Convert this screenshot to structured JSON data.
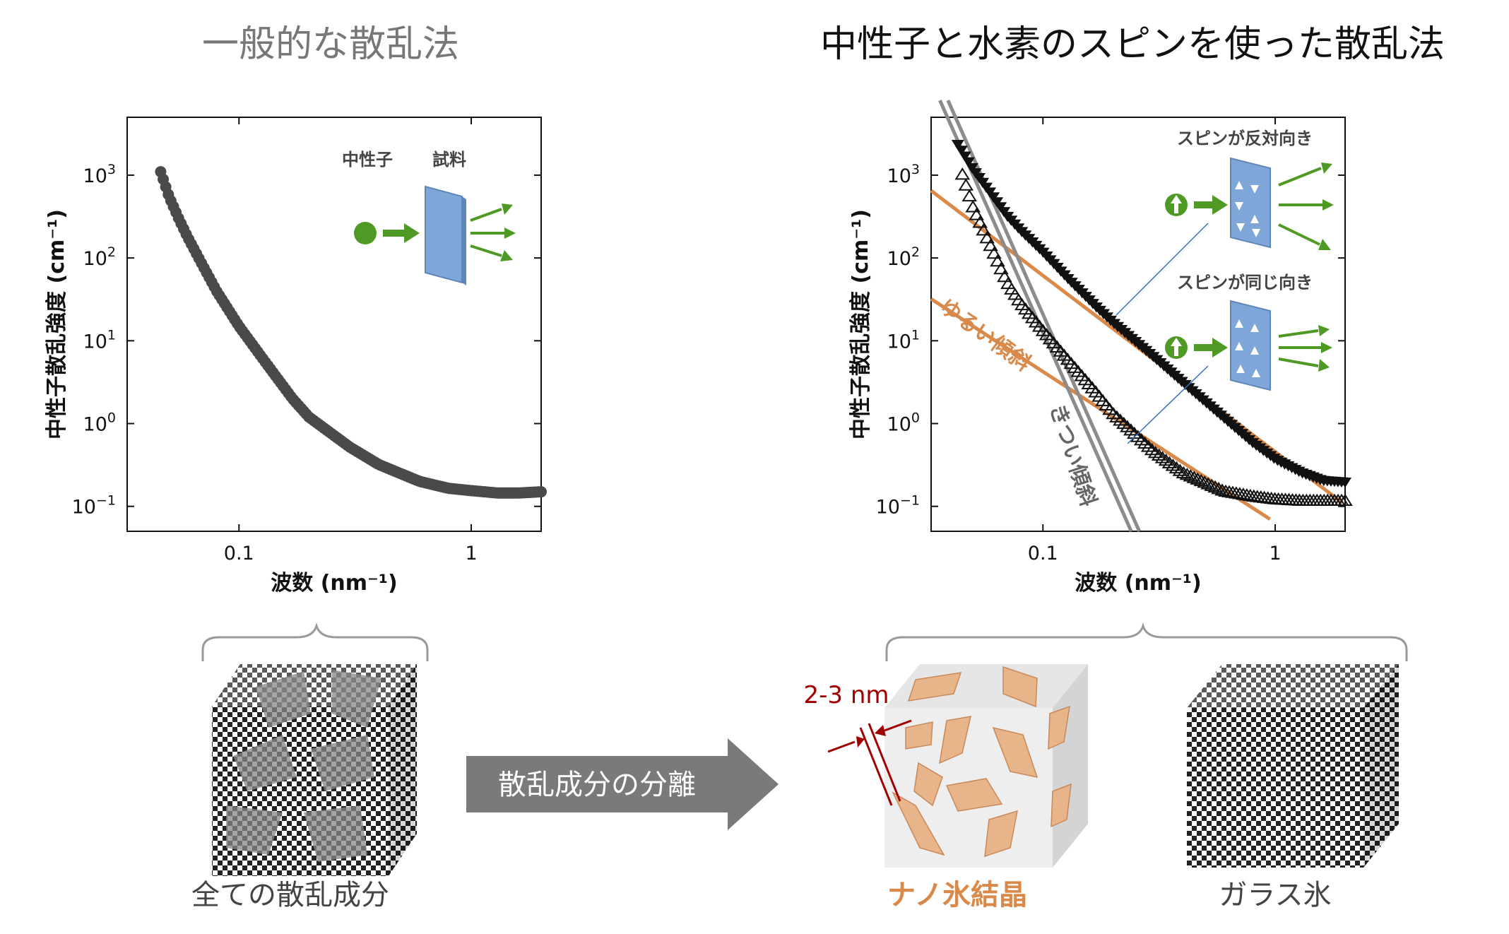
{
  "titles": {
    "left": "一般的な散乱法",
    "right": "中性子と水素のスピンを使った散乱法"
  },
  "colors": {
    "orange": "#d98a4a",
    "gray_line": "#8c8c8c",
    "green": "#4e9a24",
    "sample_blue": "#7ea6d8",
    "dark_red": "#a00000",
    "arrow_gray": "#7a7a7a"
  },
  "chart_data": [
    {
      "type": "scatter",
      "title": "",
      "xlabel": "波数 (nm⁻¹)",
      "ylabel": "中性子散乱強度 (cm⁻¹)",
      "xscale": "log",
      "yscale": "log",
      "xlim": [
        0.033,
        2.0
      ],
      "ylim": [
        0.05,
        5000
      ],
      "xticks": [
        {
          "v": 0.1,
          "label": "0.1"
        },
        {
          "v": 1,
          "label": "1"
        }
      ],
      "yticks": [
        {
          "v": 0.1,
          "base": "10",
          "exp": "−1"
        },
        {
          "v": 1,
          "base": "10",
          "exp": "0"
        },
        {
          "v": 10,
          "base": "10",
          "exp": "1"
        },
        {
          "v": 100,
          "base": "10",
          "exp": "2"
        },
        {
          "v": 1000,
          "base": "10",
          "exp": "3"
        }
      ],
      "inset_labels": {
        "neutron": "中性子",
        "sample": "試料"
      },
      "series": [
        {
          "marker": "filled-circle",
          "x": [
            0.046,
            0.05,
            0.055,
            0.06,
            0.07,
            0.08,
            0.1,
            0.13,
            0.17,
            0.2,
            0.3,
            0.4,
            0.6,
            0.8,
            1.0,
            1.3,
            1.6,
            2.0
          ],
          "y": [
            1100,
            550,
            300,
            180,
            80,
            40,
            15,
            5.5,
            2.0,
            1.2,
            0.52,
            0.32,
            0.2,
            0.165,
            0.155,
            0.145,
            0.145,
            0.15
          ]
        }
      ]
    },
    {
      "type": "scatter",
      "title": "",
      "xlabel": "波数 (nm⁻¹)",
      "ylabel": "中性子散乱強度 (cm⁻¹)",
      "xscale": "log",
      "yscale": "log",
      "xlim": [
        0.033,
        2.0
      ],
      "ylim": [
        0.05,
        5000
      ],
      "xticks": [
        {
          "v": 0.1,
          "label": "0.1"
        },
        {
          "v": 1,
          "label": "1"
        }
      ],
      "yticks": [
        {
          "v": 0.1,
          "base": "10",
          "exp": "−1"
        },
        {
          "v": 1,
          "base": "10",
          "exp": "0"
        },
        {
          "v": 10,
          "base": "10",
          "exp": "1"
        },
        {
          "v": 100,
          "base": "10",
          "exp": "2"
        },
        {
          "v": 1000,
          "base": "10",
          "exp": "3"
        }
      ],
      "inset_labels": {
        "antiparallel": "スピンが反対向き",
        "parallel": "スピンが同じ向き"
      },
      "annotations": {
        "gentle": "ゆるい傾斜",
        "steep": "きつい傾斜"
      },
      "series": [
        {
          "marker": "filled-triangle-down",
          "x": [
            0.043,
            0.05,
            0.06,
            0.07,
            0.08,
            0.1,
            0.13,
            0.17,
            0.2,
            0.3,
            0.4,
            0.6,
            0.8,
            1.0,
            1.3,
            1.6,
            2.0
          ],
          "y": [
            2400,
            1200,
            600,
            330,
            220,
            120,
            55,
            26,
            17,
            6.5,
            3.2,
            1.2,
            0.6,
            0.38,
            0.26,
            0.21,
            0.2
          ]
        },
        {
          "marker": "open-triangle-up",
          "x": [
            0.045,
            0.05,
            0.06,
            0.07,
            0.08,
            0.1,
            0.13,
            0.17,
            0.2,
            0.3,
            0.4,
            0.6,
            0.8,
            1.0,
            1.3,
            1.6,
            2.0
          ],
          "y": [
            1000,
            400,
            130,
            50,
            28,
            13,
            5.5,
            2.3,
            1.3,
            0.45,
            0.25,
            0.15,
            0.13,
            0.12,
            0.115,
            0.115,
            0.115
          ]
        }
      ],
      "fit_lines": [
        {
          "color": "orange",
          "x": [
            0.033,
            1.95
          ],
          "y": [
            650,
            0.11
          ]
        },
        {
          "color": "orange",
          "x": [
            0.033,
            0.95
          ],
          "y": [
            32,
            0.07
          ]
        },
        {
          "color": "gray",
          "x": [
            0.036,
            0.24
          ],
          "y": [
            8000,
            0.05
          ]
        },
        {
          "color": "gray",
          "x": [
            0.039,
            0.26
          ],
          "y": [
            8000,
            0.05
          ]
        }
      ]
    }
  ],
  "bottom": {
    "arrow_label": "散乱成分の分離",
    "cap_all": "全ての散乱成分",
    "cap_nano": "ナノ氷結晶",
    "cap_glass": "ガラス氷",
    "dimension": "2-3 nm"
  }
}
